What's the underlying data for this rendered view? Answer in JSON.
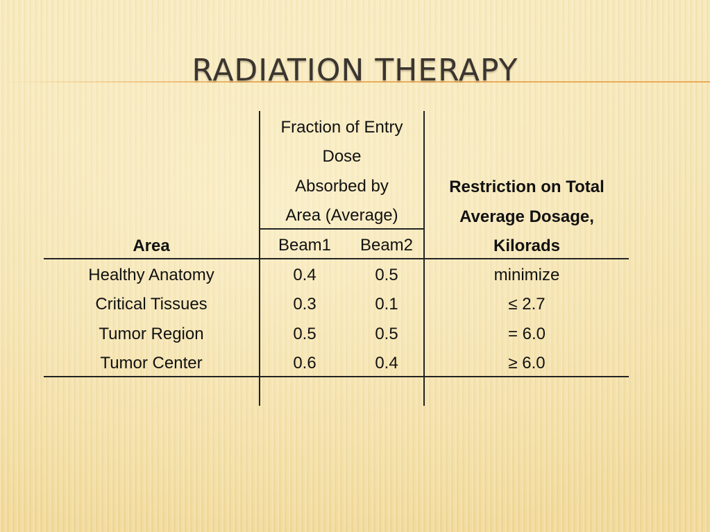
{
  "title": "Radiation Therapy",
  "table": {
    "header": {
      "area": "Area",
      "fraction_lines": [
        "Fraction of Entry",
        "Dose",
        "Absorbed by",
        "Area (Average)"
      ],
      "beam1": "Beam1",
      "beam2": "Beam2",
      "restriction_lines": [
        "Restriction on Total",
        "Average Dosage,",
        "Kilorads"
      ]
    },
    "rows": [
      {
        "area": "Healthy Anatomy",
        "beam1": "0.4",
        "beam2": "0.5",
        "restriction": "minimize"
      },
      {
        "area": "Critical Tissues",
        "beam1": "0.3",
        "beam2": "0.1",
        "restriction": "≤ 2.7"
      },
      {
        "area": "Tumor Region",
        "beam1": "0.5",
        "beam2": "0.5",
        "restriction": "= 6.0"
      },
      {
        "area": "Tumor Center",
        "beam1": "0.6",
        "beam2": "0.4",
        "restriction": "≥ 6.0"
      }
    ]
  }
}
